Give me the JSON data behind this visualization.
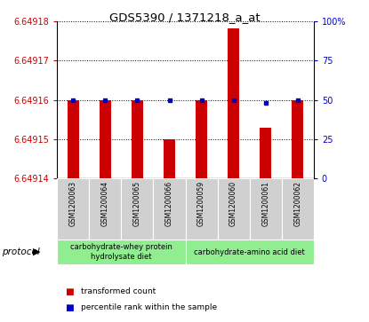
{
  "title": "GDS5390 / 1371218_a_at",
  "samples": [
    "GSM1200063",
    "GSM1200064",
    "GSM1200065",
    "GSM1200066",
    "GSM1200059",
    "GSM1200060",
    "GSM1200061",
    "GSM1200062"
  ],
  "red_values": [
    6.64916,
    6.64916,
    6.64916,
    6.64915,
    6.64916,
    6.649178,
    6.649153,
    6.64916
  ],
  "blue_values": [
    50,
    50,
    50,
    50,
    50,
    50,
    48,
    50
  ],
  "ymin": 6.64914,
  "ymax": 6.64918,
  "yticks": [
    6.64914,
    6.64915,
    6.64916,
    6.64917,
    6.64918
  ],
  "ytick_labels": [
    "6.64914",
    "6.64915",
    "6.64916",
    "6.64917",
    "6.64918"
  ],
  "y2min": 0,
  "y2max": 100,
  "y2ticks": [
    0,
    25,
    50,
    75,
    100
  ],
  "y2tick_labels": [
    "0",
    "25",
    "50",
    "75",
    "100%"
  ],
  "protocol_groups": [
    {
      "label": "carbohydrate-whey protein\nhydrolysate diet",
      "start": 0,
      "end": 4,
      "color": "#90ee90"
    },
    {
      "label": "carbohydrate-amino acid diet",
      "start": 4,
      "end": 8,
      "color": "#90ee90"
    }
  ],
  "bar_color": "#cc0000",
  "blue_color": "#0000cc",
  "sample_bg_color": "#d0d0d0",
  "plot_bg": "#ffffff",
  "tick_label_color_left": "#cc0000",
  "tick_label_color_right": "#0000cc",
  "bar_width": 0.35,
  "protocol_label": "protocol",
  "legend_red": "transformed count",
  "legend_blue": "percentile rank within the sample"
}
